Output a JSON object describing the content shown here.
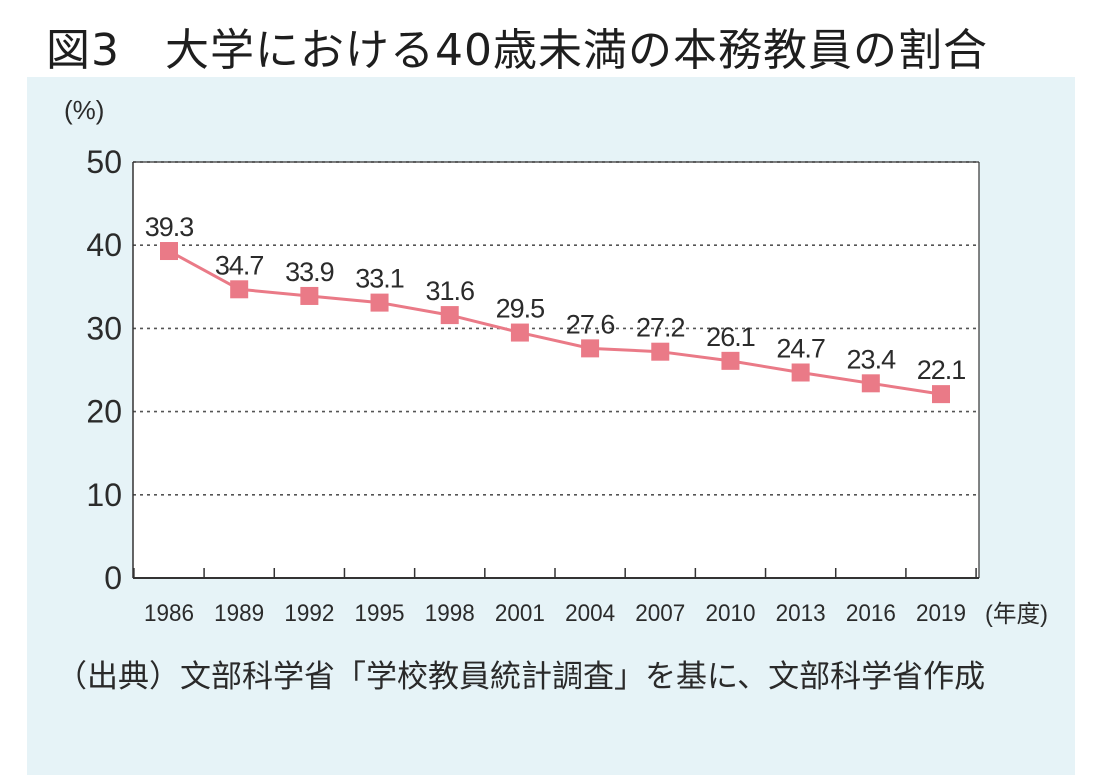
{
  "figure": {
    "title": "図3　大学における40歳未満の本務教員の割合",
    "source_note": "（出典）文部科学省「学校教員統計調査」を基に、文部科学省作成"
  },
  "colors": {
    "panel_background": "#e6f3f7",
    "plot_background": "#ffffff",
    "series": "#ea7a87",
    "grid": "#555555"
  },
  "chart_data": {
    "type": "line",
    "title": "大学における40歳未満の本務教員の割合",
    "ylabel": "(%)",
    "xlabel": "(年度)",
    "x": [
      "1986",
      "1989",
      "1992",
      "1995",
      "1998",
      "2001",
      "2004",
      "2007",
      "2010",
      "2013",
      "2016",
      "2019"
    ],
    "series": [
      {
        "values": [
          39.3,
          34.7,
          33.9,
          33.1,
          31.6,
          29.5,
          27.6,
          27.2,
          26.1,
          24.7,
          23.4,
          22.1
        ],
        "labels": [
          "39.3",
          "34.7",
          "33.9",
          "33.1",
          "31.6",
          "29.5",
          "27.6",
          "27.2",
          "26.1",
          "24.7",
          "23.4",
          "22.1"
        ]
      }
    ],
    "ylim": [
      0,
      50
    ],
    "yticks": [
      "0",
      "10",
      "20",
      "30",
      "40",
      "50"
    ],
    "grid": "horizontal dotted",
    "legend": "none",
    "marker": "square"
  }
}
